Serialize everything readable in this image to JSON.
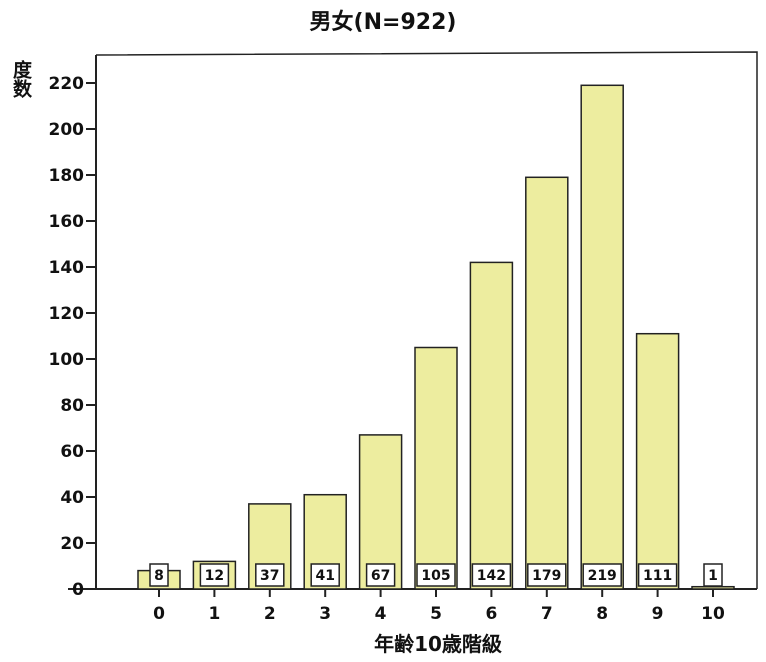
{
  "chart_data": {
    "type": "bar",
    "title": "男女(N=922)",
    "xlabel": "年齢10歳階級",
    "ylabel": "度数",
    "categories": [
      "0",
      "1",
      "2",
      "3",
      "4",
      "5",
      "6",
      "7",
      "8",
      "9",
      "10"
    ],
    "values": [
      8,
      12,
      37,
      41,
      67,
      105,
      142,
      179,
      219,
      111,
      1
    ],
    "data_labels": [
      "8",
      "12",
      "37",
      "41",
      "67",
      "105",
      "142",
      "179",
      "219",
      "111",
      "1"
    ],
    "ylim": [
      0,
      230
    ],
    "yticks": [
      0,
      20,
      40,
      60,
      80,
      100,
      120,
      140,
      160,
      180,
      200,
      220
    ],
    "grid": false,
    "bar_color": "#eded9f",
    "bar_edge_color": "#222222"
  }
}
